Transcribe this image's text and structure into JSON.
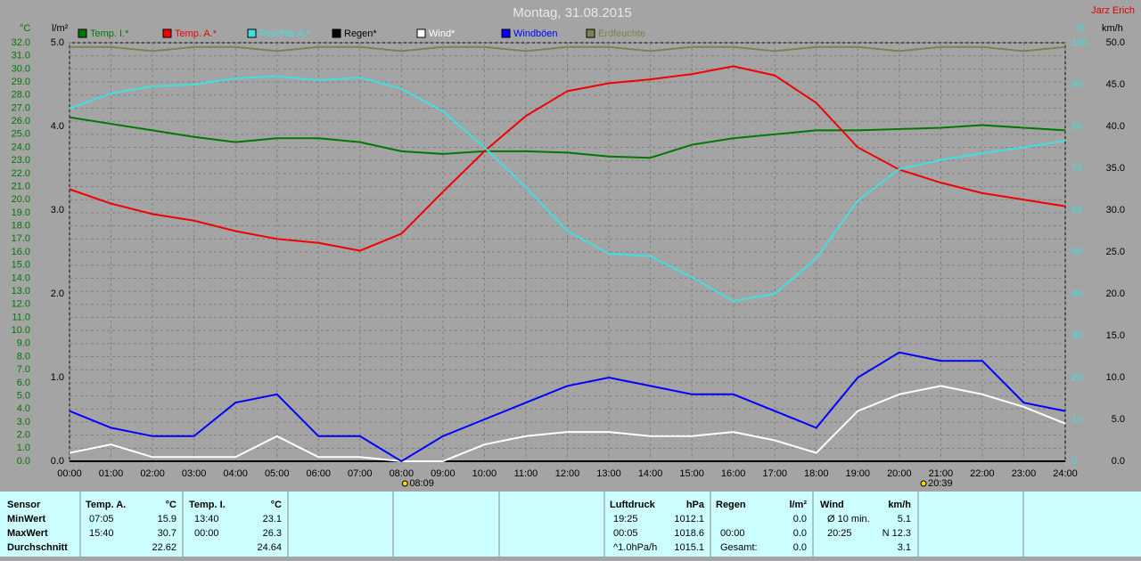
{
  "author": "Jarz Erich",
  "chart_data": {
    "type": "line",
    "title": "Montag, 31.08.2015",
    "y_label": "°C",
    "y2_label": "l/m²",
    "y3_label": "%",
    "y4_label": "km/h",
    "categories": [
      "00:00",
      "01:00",
      "02:00",
      "03:00",
      "04:00",
      "05:00",
      "06:00",
      "07:00",
      "08:00",
      "09:00",
      "10:00",
      "11:00",
      "12:00",
      "13:00",
      "14:00",
      "15:00",
      "16:00",
      "17:00",
      "18:00",
      "19:00",
      "20:00",
      "21:00",
      "22:00",
      "23:00",
      "24:00"
    ],
    "ylim": [
      0,
      32
    ],
    "yticks": [
      {
        "value": 0,
        "label": "0.0"
      },
      {
        "value": 1,
        "label": "1.0"
      },
      {
        "value": 2,
        "label": "2.0"
      },
      {
        "value": 3,
        "label": "3.0"
      },
      {
        "value": 4,
        "label": "4.0"
      },
      {
        "value": 5,
        "label": "5.0"
      },
      {
        "value": 6,
        "label": "6.0"
      },
      {
        "value": 7,
        "label": "7.0"
      },
      {
        "value": 8,
        "label": "8.0"
      },
      {
        "value": 9,
        "label": "9.0"
      },
      {
        "value": 10,
        "label": "10.0"
      },
      {
        "value": 11,
        "label": "11.0"
      },
      {
        "value": 12,
        "label": "12.0"
      },
      {
        "value": 13,
        "label": "13.0"
      },
      {
        "value": 14,
        "label": "14.0"
      },
      {
        "value": 15,
        "label": "15.0"
      },
      {
        "value": 16,
        "label": "16.0"
      },
      {
        "value": 17,
        "label": "17.0"
      },
      {
        "value": 18,
        "label": "18.0"
      },
      {
        "value": 19,
        "label": "19.0"
      },
      {
        "value": 20,
        "label": "20.0"
      },
      {
        "value": 21,
        "label": "21.0"
      },
      {
        "value": 22,
        "label": "22.0"
      },
      {
        "value": 23,
        "label": "23.0"
      },
      {
        "value": 24,
        "label": "24.0"
      },
      {
        "value": 25,
        "label": "25.0"
      },
      {
        "value": 26,
        "label": "26.0"
      },
      {
        "value": 27,
        "label": "27.0"
      },
      {
        "value": 28,
        "label": "28.0"
      },
      {
        "value": 29,
        "label": "29.0"
      },
      {
        "value": 30,
        "label": "30.0"
      },
      {
        "value": 31,
        "label": "31.0"
      },
      {
        "value": 32,
        "label": "32.0"
      }
    ],
    "y2lim": [
      0,
      5
    ],
    "y2ticks": [
      {
        "value": 0,
        "label": "0.0"
      },
      {
        "value": 1,
        "label": "1.0"
      },
      {
        "value": 2,
        "label": "2.0"
      },
      {
        "value": 3,
        "label": "3.0"
      },
      {
        "value": 4,
        "label": "4.0"
      },
      {
        "value": 5,
        "label": "5.0"
      }
    ],
    "y3lim": [
      0,
      100
    ],
    "y3ticks": [
      0,
      10,
      20,
      30,
      40,
      50,
      60,
      70,
      80,
      90,
      100
    ],
    "y4lim": [
      0,
      50
    ],
    "y4ticks": [
      {
        "value": 0,
        "label": "0.0"
      },
      {
        "value": 5,
        "label": "5.0"
      },
      {
        "value": 10,
        "label": "10.0"
      },
      {
        "value": 15,
        "label": "15.0"
      },
      {
        "value": 20,
        "label": "20.0"
      },
      {
        "value": 25,
        "label": "25.0"
      },
      {
        "value": 30,
        "label": "30.0"
      },
      {
        "value": 35,
        "label": "35.0"
      },
      {
        "value": 40,
        "label": "40.0"
      },
      {
        "value": 45,
        "label": "45.0"
      },
      {
        "value": 50,
        "label": "50.0"
      }
    ],
    "grid": true,
    "series": [
      {
        "name": "Temp. I.*",
        "color": "#007800",
        "axis": "y",
        "values": [
          26.3,
          25.8,
          25.3,
          24.8,
          24.4,
          24.7,
          24.7,
          24.4,
          23.7,
          23.5,
          23.7,
          23.7,
          23.6,
          23.3,
          23.2,
          24.2,
          24.7,
          25.0,
          25.3,
          25.3,
          25.4,
          25.5,
          25.7,
          25.5,
          25.3
        ]
      },
      {
        "name": "Temp. A.*",
        "color": "#f00000",
        "axis": "y",
        "values": [
          20.8,
          19.7,
          18.9,
          18.4,
          17.6,
          17.0,
          16.7,
          16.1,
          17.4,
          20.6,
          23.7,
          26.4,
          28.3,
          28.9,
          29.2,
          29.6,
          30.2,
          29.5,
          27.4,
          24.0,
          22.3,
          21.3,
          20.5,
          20.0,
          19.5
        ]
      },
      {
        "name": "Feuchte A.*",
        "color": "#40e0e0",
        "axis": "y3",
        "values": [
          84.3,
          87.9,
          89.6,
          90,
          91.5,
          92,
          91,
          91.7,
          89,
          83.6,
          75,
          65.5,
          55,
          49.6,
          49,
          44,
          38.3,
          40,
          48.5,
          62.3,
          69.8,
          72,
          73.6,
          75,
          76.6
        ]
      },
      {
        "name": "Regen*",
        "color": "#000000",
        "axis": "y2",
        "values": [
          0,
          0,
          0,
          0,
          0,
          0,
          0,
          0,
          0,
          0,
          0,
          0,
          0,
          0,
          0,
          0,
          0,
          0,
          0,
          0,
          0,
          0,
          0,
          0,
          0
        ]
      },
      {
        "name": "Wind*",
        "color": "#ffffff",
        "axis": "y4",
        "values": [
          1,
          2,
          0.5,
          0.5,
          0.5,
          3,
          0.5,
          0.5,
          0,
          0,
          2,
          3,
          3.5,
          3.5,
          3,
          3,
          3.5,
          2.5,
          1,
          6,
          8,
          9,
          8,
          6.5,
          4.5
        ]
      },
      {
        "name": "Windböen",
        "color": "#0000ff",
        "axis": "y4",
        "values": [
          6,
          4,
          3,
          3,
          7,
          8,
          3,
          3,
          0,
          3,
          5,
          7,
          9,
          10,
          9,
          8,
          8,
          6,
          4,
          10,
          13,
          12,
          12,
          7,
          6
        ]
      },
      {
        "name": "Erdfeuchte",
        "color": "#808050",
        "axis": "y3",
        "values": [
          99,
          99,
          98,
          99,
          99,
          98,
          99,
          99,
          98,
          99,
          99,
          98,
          99,
          99,
          98,
          99,
          99,
          98,
          99,
          99,
          98,
          99,
          99,
          98,
          99
        ]
      }
    ],
    "sun_markers": [
      "08:09",
      "20:39"
    ]
  },
  "table": {
    "header": [
      "Sensor",
      "Temp. A.",
      "°C",
      "Temp. I.",
      "°C",
      "Luftdruck",
      "hPa",
      "Regen",
      "l/m²",
      "Wind",
      "km/h"
    ],
    "row_labels": [
      "MinWert",
      "MaxWert",
      "Durchschnitt"
    ],
    "blocks": [
      {
        "rows": [
          {
            "time": "07:05",
            "value": "15.9"
          },
          {
            "time": "15:40",
            "value": "30.7"
          },
          {
            "value": "22.62"
          }
        ]
      },
      {
        "rows": [
          {
            "time": "13:40",
            "value": "23.1"
          },
          {
            "time": "00:00",
            "value": "26.3"
          },
          {
            "value": "24.64"
          }
        ]
      },
      {
        "rows": [
          {
            "time": "19:25",
            "value": "1012.1"
          },
          {
            "time": "00:05",
            "value": "1018.6"
          },
          {
            "time": "^1.0hPa/h",
            "value": "1015.1"
          }
        ]
      },
      {
        "rows": [
          {
            "value": "0.0"
          },
          {
            "time": "00:00",
            "value": "0.0"
          },
          {
            "time": "Gesamt:",
            "value": "0.0"
          }
        ]
      },
      {
        "rows": [
          {
            "time": "Ø 10 min.",
            "value": "5.1"
          },
          {
            "time": "20:25",
            "value": "N 12.3"
          },
          {
            "value": "3.1"
          }
        ]
      }
    ]
  }
}
